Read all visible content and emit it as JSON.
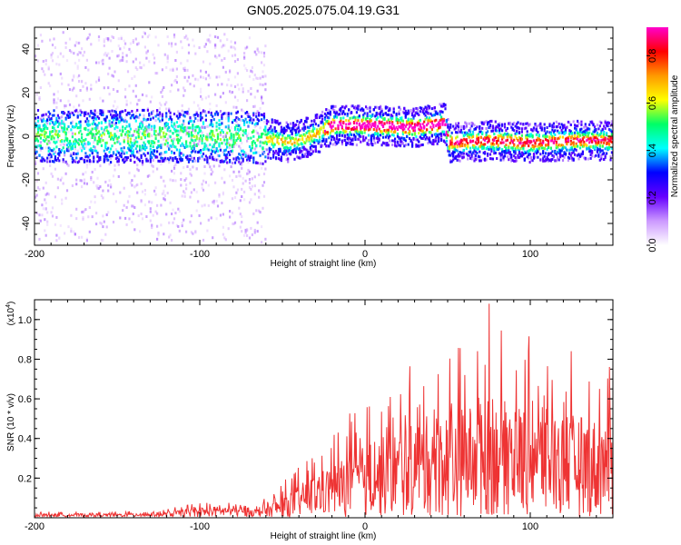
{
  "title": "GN05.2025.075.04.19.G31",
  "chart_data": [
    {
      "type": "heatmap",
      "panel": "spectrogram",
      "xlabel": "Height of straight line (km)",
      "ylabel": "Frequency (Hz)",
      "xlim": [
        -200,
        150
      ],
      "ylim": [
        -50,
        50
      ],
      "xticks": [
        -200,
        -100,
        0,
        100
      ],
      "yticks": [
        -40,
        -20,
        0,
        20,
        40
      ],
      "colorbar": {
        "label": "Normalized spectral amplitude",
        "range": [
          0,
          0.92
        ],
        "ticks": [
          0.0,
          0.2,
          0.4,
          0.6,
          0.8
        ],
        "colormap": [
          "#ffffff",
          "#cc99ff",
          "#6600ff",
          "#0000ff",
          "#00ffff",
          "#00ff66",
          "#ffff00",
          "#ff9900",
          "#ff0000",
          "#ff00cc"
        ]
      },
      "center_frequency_track": [
        {
          "x": -200,
          "y": 0
        },
        {
          "x": -150,
          "y": 0
        },
        {
          "x": -100,
          "y": 0
        },
        {
          "x": -60,
          "y": -1
        },
        {
          "x": -45,
          "y": -3
        },
        {
          "x": -30,
          "y": 1
        },
        {
          "x": -20,
          "y": 5
        },
        {
          "x": 0,
          "y": 5
        },
        {
          "x": 30,
          "y": 4
        },
        {
          "x": 48,
          "y": 6
        },
        {
          "x": 50,
          "y": -3
        },
        {
          "x": 75,
          "y": -2
        },
        {
          "x": 100,
          "y": -3
        },
        {
          "x": 125,
          "y": -2
        },
        {
          "x": 150,
          "y": -2
        }
      ]
    },
    {
      "type": "line",
      "panel": "snr",
      "xlabel": "Height of straight line (km)",
      "ylabel": "SNR (10 * v/v)",
      "y_scale_label": "(x10",
      "y_scale_exponent": "4",
      "xlim": [
        -200,
        150
      ],
      "ylim": [
        0,
        1.1
      ],
      "xticks": [
        -200,
        -100,
        0,
        100
      ],
      "yticks": [
        0.2,
        0.4,
        0.6,
        0.8,
        1.0
      ],
      "ytick_labels": [
        "0.2",
        "0.4",
        "0.6",
        "0.8",
        "1.0"
      ],
      "color": "#ee3333",
      "envelope": [
        {
          "x": -200,
          "y": 0.02
        },
        {
          "x": -150,
          "y": 0.02
        },
        {
          "x": -120,
          "y": 0.03
        },
        {
          "x": -100,
          "y": 0.06
        },
        {
          "x": -80,
          "y": 0.07
        },
        {
          "x": -65,
          "y": 0.05
        },
        {
          "x": -55,
          "y": 0.1
        },
        {
          "x": -40,
          "y": 0.2
        },
        {
          "x": -25,
          "y": 0.3
        },
        {
          "x": -10,
          "y": 0.4
        },
        {
          "x": 0,
          "y": 0.45
        },
        {
          "x": 20,
          "y": 0.55
        },
        {
          "x": 40,
          "y": 0.65
        },
        {
          "x": 60,
          "y": 0.7
        },
        {
          "x": 75,
          "y": 0.75
        },
        {
          "x": 100,
          "y": 0.7
        },
        {
          "x": 125,
          "y": 0.65
        },
        {
          "x": 150,
          "y": 0.6
        }
      ],
      "peak": {
        "x": 75,
        "y": 1.08
      }
    }
  ]
}
